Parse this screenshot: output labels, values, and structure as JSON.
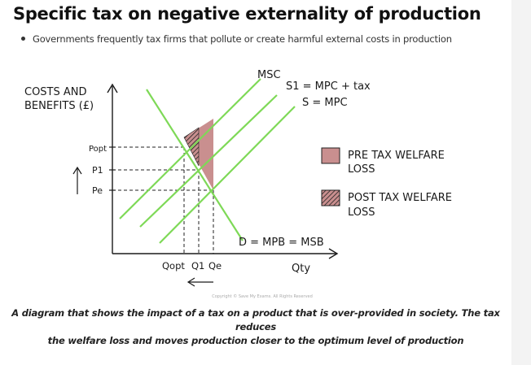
{
  "page": {
    "title": "Specific tax on negative externality of production",
    "bullet": "Governments frequently tax firms that pollute or create harmful external costs in production"
  },
  "diagram": {
    "y_axis_label_line1": "COSTS AND",
    "y_axis_label_line2": "BENEFITS (£)",
    "x_axis_label": "Qty",
    "price_labels": {
      "p_opt": "Popt",
      "p1": "P1",
      "pe": "Pe"
    },
    "quantity_labels": {
      "q_opt": "Qopt",
      "q1": "Q1",
      "qe": "Qe"
    },
    "curves": {
      "msc": "MSC",
      "s1": "S1 = MPC + tax",
      "s": "S = MPC",
      "demand": "D = MPB = MSB"
    },
    "legend": {
      "pre_tax_line1": "PRE TAX WELFARE",
      "pre_tax_line2": "LOSS",
      "post_tax_line1": "POST TAX WELFARE",
      "post_tax_line2": "LOSS"
    },
    "copyright": "Copyright © Save My Exams. All Rights Reserved",
    "colors": {
      "curve": "#7ed957",
      "welfare_loss": "#c98f8f",
      "axis": "#1a1a1a"
    }
  },
  "caption": {
    "line1": "A diagram that shows the impact of a tax on a product that is over-provided in society. The tax reduces",
    "line2": "the welfare loss and moves production closer to the optimum level of production"
  }
}
